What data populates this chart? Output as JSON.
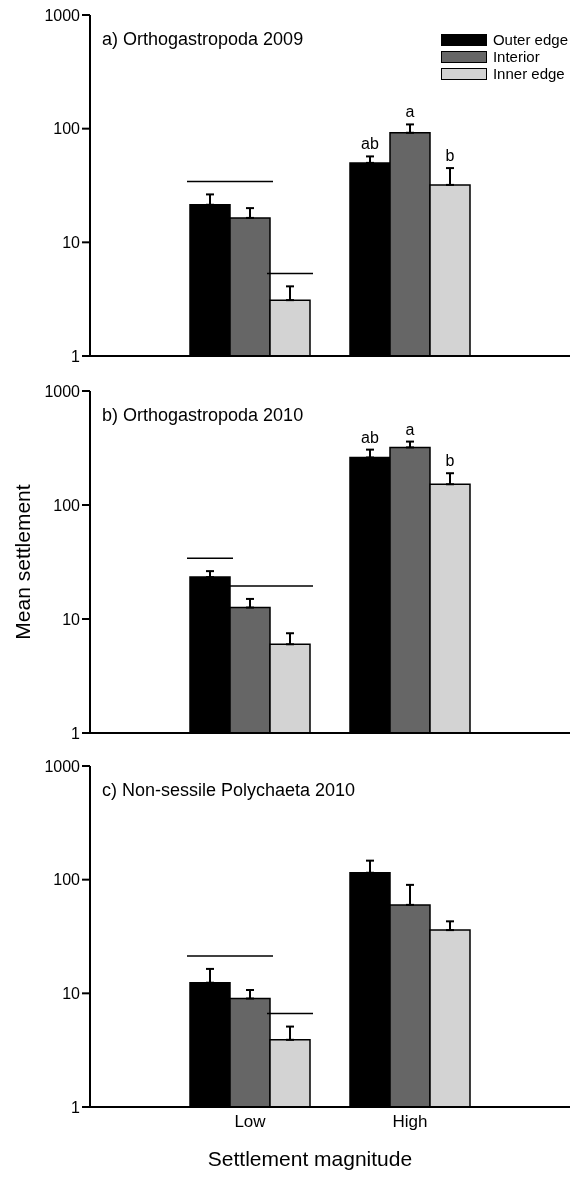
{
  "chart_data": [
    {
      "type": "bar",
      "title": "a) Orthogastropoda 2009",
      "categories": [
        null,
        null
      ],
      "log": "y",
      "ylim": [
        1,
        1000
      ],
      "yticks": [
        1,
        10,
        100,
        1000
      ],
      "tick_labels": "y",
      "legend": "top right",
      "series": [
        {
          "name": "Outer edge",
          "color": "#000000",
          "values": [
            21.4,
            50
          ],
          "errors": [
            5,
            7
          ]
        },
        {
          "name": "Interior",
          "color": "#666666",
          "values": [
            16.4,
            92
          ],
          "errors": [
            3.6,
            17
          ]
        },
        {
          "name": "Inner edge",
          "color": "#d3d3d3",
          "values": [
            3.1,
            32
          ],
          "errors": [
            1,
            13
          ]
        }
      ],
      "annotations": [
        "ab",
        "a",
        "b"
      ]
    },
    {
      "type": "bar",
      "title": "b) Orthogastropoda 2010",
      "ylabel": "Mean settlement",
      "categories": [
        null,
        null
      ],
      "log": "y",
      "ylim": [
        1,
        1000
      ],
      "yticks": [
        1,
        10,
        100,
        1000
      ],
      "tick_labels": "y",
      "series": [
        {
          "color": "#000000",
          "values": [
            23.3,
            261
          ],
          "errors": [
            3,
            45
          ]
        },
        {
          "color": "#666666",
          "values": [
            12.6,
            320
          ],
          "errors": [
            2.4,
            40
          ]
        },
        {
          "color": "#d3d3d3",
          "values": [
            6,
            152
          ],
          "errors": [
            1.5,
            38
          ]
        }
      ],
      "annotations": [
        "ab",
        "a",
        "b"
      ]
    },
    {
      "type": "bar",
      "title": "c) Non-sessile Polychaeta 2010",
      "xlabel": "Settlement magnitude",
      "categories": [
        "Low",
        "High"
      ],
      "log": "y",
      "ylim": [
        1,
        1000
      ],
      "yticks": [
        1,
        10,
        100,
        1000
      ],
      "series": [
        {
          "color": "#000000",
          "values": [
            12.4,
            115
          ],
          "errors": [
            4,
            32
          ]
        },
        {
          "color": "#666666",
          "values": [
            9,
            60
          ],
          "errors": [
            1.7,
            30
          ]
        },
        {
          "color": "#d3d3d3",
          "values": [
            3.9,
            36
          ],
          "errors": [
            1.2,
            7
          ]
        }
      ]
    }
  ]
}
